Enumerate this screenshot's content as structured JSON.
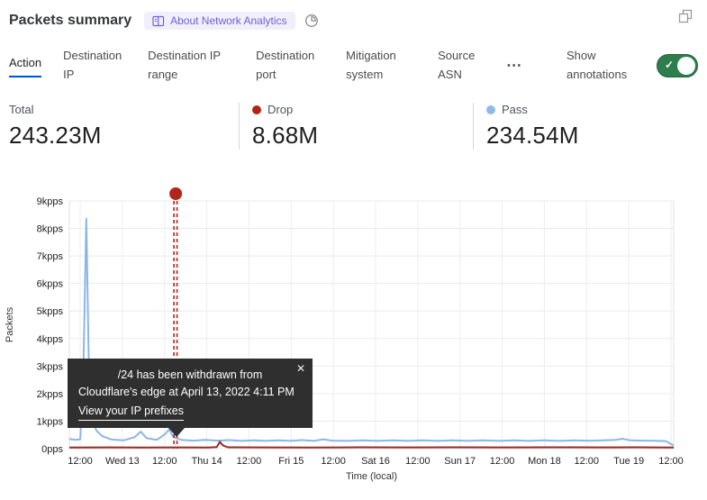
{
  "header": {
    "title": "Packets summary",
    "badge_label": "About Network Analytics"
  },
  "tabs": [
    {
      "label": "Action",
      "active": true
    },
    {
      "label": "Destination IP"
    },
    {
      "label": "Destination IP range"
    },
    {
      "label": "Destination port"
    },
    {
      "label": "Mitigation system"
    },
    {
      "label": "Source ASN"
    }
  ],
  "more_menu": "⋯",
  "annotations_toggle": {
    "label": "Show annotations",
    "state": "on",
    "on_color": "#2e7d4c",
    "check": "✓"
  },
  "stats": [
    {
      "label": "Total",
      "value": "243.23M",
      "dot": ""
    },
    {
      "label": "Drop",
      "value": "8.68M",
      "dot": "#b42318"
    },
    {
      "label": "Pass",
      "value": "234.54M",
      "dot": "#90b9ea"
    }
  ],
  "tooltip": {
    "line1": "/24 has been withdrawn from",
    "line2": "Cloudflare's edge at April 13, 2022 4:11 PM",
    "link": "View your IP prefixes",
    "close": "✕"
  },
  "chart_data": {
    "type": "line",
    "title": "Packets summary",
    "xlabel": "Time (local)",
    "ylabel": "Packets",
    "ylim": [
      0,
      9000
    ],
    "grid": true,
    "legend_position": "top-stats",
    "y_ticks": [
      {
        "value": 9000,
        "label": "9kpps"
      },
      {
        "value": 8000,
        "label": "8kpps"
      },
      {
        "value": 7000,
        "label": "7kpps"
      },
      {
        "value": 6000,
        "label": "6kpps"
      },
      {
        "value": 5000,
        "label": "5kpps"
      },
      {
        "value": 4000,
        "label": "4kpps"
      },
      {
        "value": 3000,
        "label": "3kpps"
      },
      {
        "value": 2000,
        "label": "2kpps"
      },
      {
        "value": 1000,
        "label": "1kpps"
      },
      {
        "value": 0,
        "label": "0pps"
      }
    ],
    "x_ticks": [
      "12:00",
      "Wed 13",
      "12:00",
      "Thu 14",
      "12:00",
      "Fri 15",
      "12:00",
      "Sat 16",
      "12:00",
      "Sun 17",
      "12:00",
      "Mon 18",
      "12:00",
      "Tue 19",
      "12:00"
    ],
    "series": [
      {
        "name": "Pass",
        "color": "#8cb5e9",
        "width": 2,
        "points": [
          [
            0.0,
            350
          ],
          [
            0.01,
            320
          ],
          [
            0.018,
            340
          ],
          [
            0.023,
            2600
          ],
          [
            0.028,
            8350
          ],
          [
            0.032,
            3300
          ],
          [
            0.036,
            1100
          ],
          [
            0.045,
            650
          ],
          [
            0.055,
            450
          ],
          [
            0.07,
            330
          ],
          [
            0.09,
            300
          ],
          [
            0.108,
            420
          ],
          [
            0.118,
            620
          ],
          [
            0.128,
            380
          ],
          [
            0.145,
            320
          ],
          [
            0.158,
            520
          ],
          [
            0.165,
            700
          ],
          [
            0.172,
            420
          ],
          [
            0.185,
            320
          ],
          [
            0.205,
            290
          ],
          [
            0.225,
            320
          ],
          [
            0.245,
            290
          ],
          [
            0.265,
            310
          ],
          [
            0.285,
            280
          ],
          [
            0.305,
            300
          ],
          [
            0.325,
            280
          ],
          [
            0.345,
            300
          ],
          [
            0.365,
            280
          ],
          [
            0.385,
            310
          ],
          [
            0.405,
            280
          ],
          [
            0.42,
            340
          ],
          [
            0.435,
            290
          ],
          [
            0.46,
            280
          ],
          [
            0.485,
            300
          ],
          [
            0.51,
            280
          ],
          [
            0.535,
            300
          ],
          [
            0.56,
            280
          ],
          [
            0.585,
            300
          ],
          [
            0.61,
            280
          ],
          [
            0.635,
            300
          ],
          [
            0.66,
            280
          ],
          [
            0.685,
            300
          ],
          [
            0.71,
            280
          ],
          [
            0.735,
            300
          ],
          [
            0.76,
            280
          ],
          [
            0.785,
            300
          ],
          [
            0.81,
            280
          ],
          [
            0.835,
            300
          ],
          [
            0.86,
            285
          ],
          [
            0.885,
            300
          ],
          [
            0.905,
            320
          ],
          [
            0.915,
            360
          ],
          [
            0.928,
            300
          ],
          [
            0.95,
            290
          ],
          [
            0.97,
            285
          ],
          [
            0.988,
            270
          ],
          [
            1.0,
            110
          ]
        ]
      },
      {
        "name": "Drop",
        "color": "#a3261d",
        "width": 2,
        "points": [
          [
            0.0,
            40
          ],
          [
            0.06,
            45
          ],
          [
            0.12,
            40
          ],
          [
            0.18,
            45
          ],
          [
            0.23,
            40
          ],
          [
            0.244,
            55
          ],
          [
            0.249,
            250
          ],
          [
            0.254,
            120
          ],
          [
            0.262,
            50
          ],
          [
            0.32,
            45
          ],
          [
            0.4,
            40
          ],
          [
            0.48,
            50
          ],
          [
            0.56,
            45
          ],
          [
            0.64,
            50
          ],
          [
            0.72,
            45
          ],
          [
            0.8,
            50
          ],
          [
            0.88,
            45
          ],
          [
            0.94,
            50
          ],
          [
            1.0,
            40
          ]
        ]
      }
    ],
    "annotation": {
      "x_fraction": 0.176,
      "color": "#b2261a",
      "style": "double-dashed-vertical",
      "marker": "dot"
    }
  }
}
